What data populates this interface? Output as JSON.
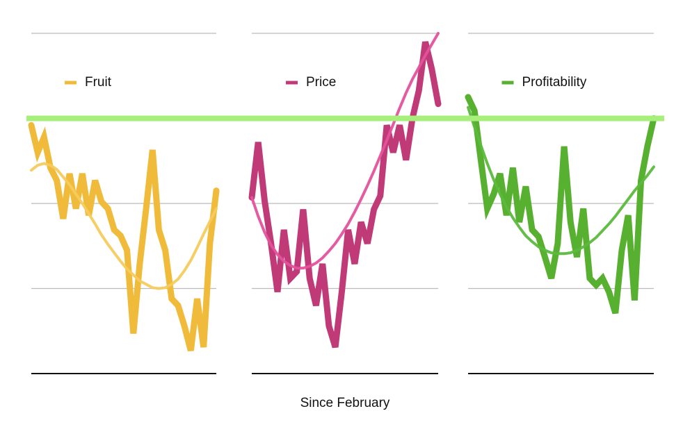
{
  "chart_data": [
    {
      "type": "line",
      "legend": "top",
      "ylim": [
        0,
        4
      ],
      "gridlines": [
        0,
        1,
        2,
        3,
        4
      ],
      "categories": [
        null,
        null,
        null,
        null,
        null,
        null,
        null,
        null,
        null,
        null,
        null,
        null,
        null,
        null,
        null,
        null,
        null,
        null,
        null,
        null,
        null,
        null,
        null,
        null,
        null,
        null,
        null,
        null,
        null,
        null
      ],
      "series": [
        {
          "name": "Fruit",
          "color": "#f0bb3a",
          "values": [
            2.92,
            2.6,
            2.78,
            2.42,
            2.27,
            1.82,
            2.35,
            1.94,
            2.35,
            1.86,
            2.27,
            2.02,
            1.94,
            1.69,
            1.62,
            1.45,
            0.47,
            1.29,
            1.94,
            2.63,
            1.69,
            1.45,
            0.88,
            0.8,
            0.56,
            0.27,
            0.88,
            0.31,
            1.53,
            2.15
          ]
        },
        {
          "color": "#f5cb5e",
          "values": [
            2.39,
            2.45,
            2.47,
            2.45,
            2.4,
            2.31,
            2.22,
            2.11,
            2.0,
            1.88,
            1.76,
            1.63,
            1.52,
            1.42,
            1.32,
            1.23,
            1.16,
            1.09,
            1.05,
            1.01,
            1.0,
            1.01,
            1.05,
            1.11,
            1.21,
            1.33,
            1.48,
            1.64,
            1.79,
            1.94
          ]
        }
      ]
    },
    {
      "type": "line",
      "legend": "top",
      "ylim": [
        0,
        4
      ],
      "gridlines": [
        0,
        1,
        2,
        3,
        4
      ],
      "xlabel": "Since February",
      "categories": [
        null,
        null,
        null,
        null,
        null,
        null,
        null,
        null,
        null,
        null,
        null,
        null,
        null,
        null,
        null,
        null,
        null,
        null,
        null,
        null,
        null,
        null,
        null,
        null,
        null,
        null,
        null,
        null,
        null,
        null
      ],
      "series": [
        {
          "name": "Price",
          "color": "#c03a78",
          "values": [
            2.07,
            2.72,
            2.03,
            1.53,
            0.96,
            1.69,
            1.12,
            1.2,
            1.93,
            1.12,
            0.8,
            1.29,
            0.56,
            0.31,
            0.96,
            1.69,
            1.29,
            1.78,
            1.53,
            1.93,
            2.09,
            2.92,
            2.6,
            2.92,
            2.51,
            3.0,
            3.33,
            3.9,
            3.58,
            3.17
          ]
        },
        {
          "color": "#e4529c",
          "values": [
            2.07,
            1.85,
            1.66,
            1.51,
            1.4,
            1.32,
            1.27,
            1.24,
            1.24,
            1.26,
            1.3,
            1.36,
            1.44,
            1.53,
            1.64,
            1.76,
            1.9,
            2.05,
            2.21,
            2.38,
            2.56,
            2.74,
            2.93,
            3.12,
            3.3,
            3.46,
            3.6,
            3.74,
            3.87,
            4.0
          ]
        }
      ]
    },
    {
      "type": "line",
      "legend": "top",
      "ylim": [
        0,
        4
      ],
      "gridlines": [
        0,
        1,
        2,
        3,
        4
      ],
      "categories": [
        null,
        null,
        null,
        null,
        null,
        null,
        null,
        null,
        null,
        null,
        null,
        null,
        null,
        null,
        null,
        null,
        null,
        null,
        null,
        null,
        null,
        null,
        null,
        null,
        null,
        null,
        null,
        null,
        null,
        null
      ],
      "series": [
        {
          "name": "Profitability",
          "color": "#58b030",
          "values": [
            3.25,
            3.09,
            2.51,
            1.94,
            2.11,
            2.35,
            1.86,
            2.42,
            1.78,
            2.2,
            1.69,
            1.61,
            1.37,
            1.12,
            1.53,
            2.67,
            1.78,
            1.37,
            1.94,
            1.12,
            1.04,
            1.12,
            0.96,
            0.71,
            1.45,
            1.86,
            0.86,
            2.27,
            2.67,
            3.0
          ]
        },
        {
          "color": "#5cb93c",
          "values": [
            3.13,
            2.9,
            2.68,
            2.47,
            2.28,
            2.11,
            1.96,
            1.83,
            1.72,
            1.62,
            1.55,
            1.49,
            1.45,
            1.42,
            1.41,
            1.41,
            1.42,
            1.45,
            1.49,
            1.54,
            1.6,
            1.68,
            1.76,
            1.85,
            1.95,
            2.05,
            2.15,
            2.24,
            2.33,
            2.43
          ]
        }
      ]
    }
  ],
  "reference_line": {
    "value": 3,
    "color": "#a6ef7a"
  }
}
